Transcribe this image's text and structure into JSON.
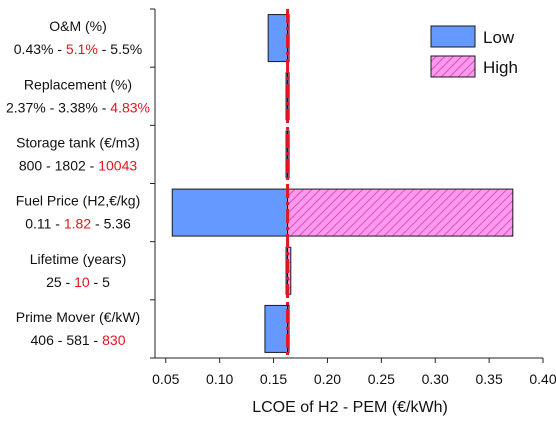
{
  "chart_data": {
    "type": "bar",
    "orientation": "horizontal",
    "title": "",
    "xlabel": "LCOE of H2 - PEM (€/kWh)",
    "ylabel": "",
    "xlim": [
      0.04,
      0.4
    ],
    "xticks": [
      "0.05",
      "0.10",
      "0.15",
      "0.20",
      "0.25",
      "0.30",
      "0.35",
      "0.40"
    ],
    "baseline": 0.163,
    "legend": {
      "position": "top-right",
      "entries": [
        "Low",
        "High"
      ]
    },
    "categories": [
      {
        "label": "O&M (%)",
        "range": [
          "0.43%",
          "5.1%",
          "5.5%"
        ],
        "highlight": 1,
        "low": 0.145,
        "high": 0.163
      },
      {
        "label": "Replacement (%)",
        "range": [
          "2.37%",
          "3.38%",
          "4.83%"
        ],
        "highlight": 2,
        "low": 0.163,
        "high": 0.163
      },
      {
        "label": "Storage tank (€/m3)",
        "range": [
          "800",
          "1802",
          "10043"
        ],
        "highlight": 2,
        "low": 0.163,
        "high": 0.163
      },
      {
        "label": "Fuel Price (H2,€/kg)",
        "range": [
          "0.11",
          "1.82",
          "5.36"
        ],
        "highlight": 1,
        "low": 0.056,
        "high": 0.372
      },
      {
        "label": "Lifetime (years)",
        "range": [
          "25",
          "10",
          "5"
        ],
        "highlight": 1,
        "low": 0.163,
        "high": 0.166
      },
      {
        "label": "Prime Mover (€/kW)",
        "range": [
          "406",
          "581",
          "830"
        ],
        "highlight": 2,
        "low": 0.142,
        "high": 0.163
      }
    ],
    "colors": {
      "low": "#6699ff",
      "high_fill": "#ff99ee",
      "high_hatch": "#cc33aa",
      "baseline": "#e8141e",
      "highlight_text": "#e8141e"
    }
  }
}
